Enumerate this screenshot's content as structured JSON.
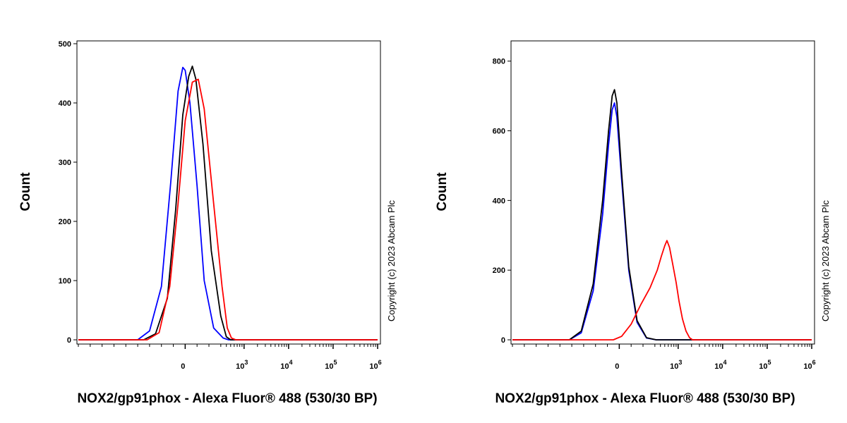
{
  "copyright": "Copyright (c) 2023 Abcam Plc",
  "chart_data": [
    {
      "type": "line",
      "xlabel": "NOX2/gp91phox - Alexa Fluor® 488 (530/30 BP)",
      "ylabel": "Count",
      "ylim": [
        0,
        500
      ],
      "yticks": [
        0,
        100,
        200,
        300,
        400,
        500
      ],
      "xscale": "biexponential",
      "xticks": [
        {
          "base": "0",
          "exp": ""
        },
        {
          "base": "10",
          "exp": "3"
        },
        {
          "base": "10",
          "exp": "4"
        },
        {
          "base": "10",
          "exp": "5"
        },
        {
          "base": "10",
          "exp": "6"
        }
      ],
      "grid": false,
      "series": [
        {
          "color": "#0000ff",
          "x": [
            -400,
            -300,
            -200,
            -120,
            -60,
            -20,
            0,
            40,
            100,
            160,
            240,
            340,
            450
          ],
          "y": [
            0,
            15,
            90,
            270,
            420,
            460,
            455,
            400,
            260,
            100,
            20,
            3,
            0
          ]
        },
        {
          "color": "#000000",
          "x": [
            -350,
            -250,
            -150,
            -80,
            -20,
            30,
            60,
            90,
            150,
            220,
            300,
            400,
            500
          ],
          "y": [
            0,
            10,
            70,
            220,
            380,
            445,
            462,
            440,
            330,
            150,
            40,
            5,
            0
          ]
        },
        {
          "color": "#ff0000",
          "x": [
            -320,
            -220,
            -130,
            -60,
            0,
            60,
            110,
            160,
            230,
            320,
            420,
            520,
            650
          ],
          "y": [
            0,
            12,
            90,
            230,
            370,
            435,
            440,
            390,
            250,
            90,
            20,
            3,
            0
          ]
        }
      ]
    },
    {
      "type": "line",
      "xlabel": "NOX2/gp91phox - Alexa Fluor® 488 (530/30 BP)",
      "ylabel": "Count",
      "ylim": [
        0,
        850
      ],
      "yticks": [
        0,
        200,
        400,
        600,
        800
      ],
      "xscale": "biexponential",
      "xticks": [
        {
          "base": "0",
          "exp": ""
        },
        {
          "base": "10",
          "exp": "3"
        },
        {
          "base": "10",
          "exp": "4"
        },
        {
          "base": "10",
          "exp": "5"
        },
        {
          "base": "10",
          "exp": "6"
        }
      ],
      "grid": false,
      "series": [
        {
          "color": "#0000ff",
          "x": [
            -420,
            -320,
            -220,
            -140,
            -90,
            -60,
            -40,
            -20,
            20,
            80,
            150,
            230,
            320
          ],
          "y": [
            0,
            20,
            140,
            360,
            560,
            660,
            680,
            640,
            460,
            200,
            50,
            5,
            0
          ]
        },
        {
          "color": "#000000",
          "x": [
            -420,
            -320,
            -220,
            -140,
            -90,
            -60,
            -40,
            -20,
            20,
            80,
            150,
            230,
            320
          ],
          "y": [
            0,
            25,
            160,
            400,
            600,
            700,
            718,
            680,
            480,
            210,
            55,
            6,
            0
          ]
        },
        {
          "color": "#ff0000",
          "x": [
            -50,
            20,
            100,
            180,
            260,
            340,
            420,
            500,
            560,
            640,
            760,
            900,
            1050,
            1250,
            1500,
            1800,
            2100
          ],
          "y": [
            0,
            10,
            45,
            100,
            150,
            200,
            240,
            270,
            285,
            265,
            215,
            165,
            110,
            60,
            25,
            6,
            0
          ]
        }
      ]
    }
  ]
}
